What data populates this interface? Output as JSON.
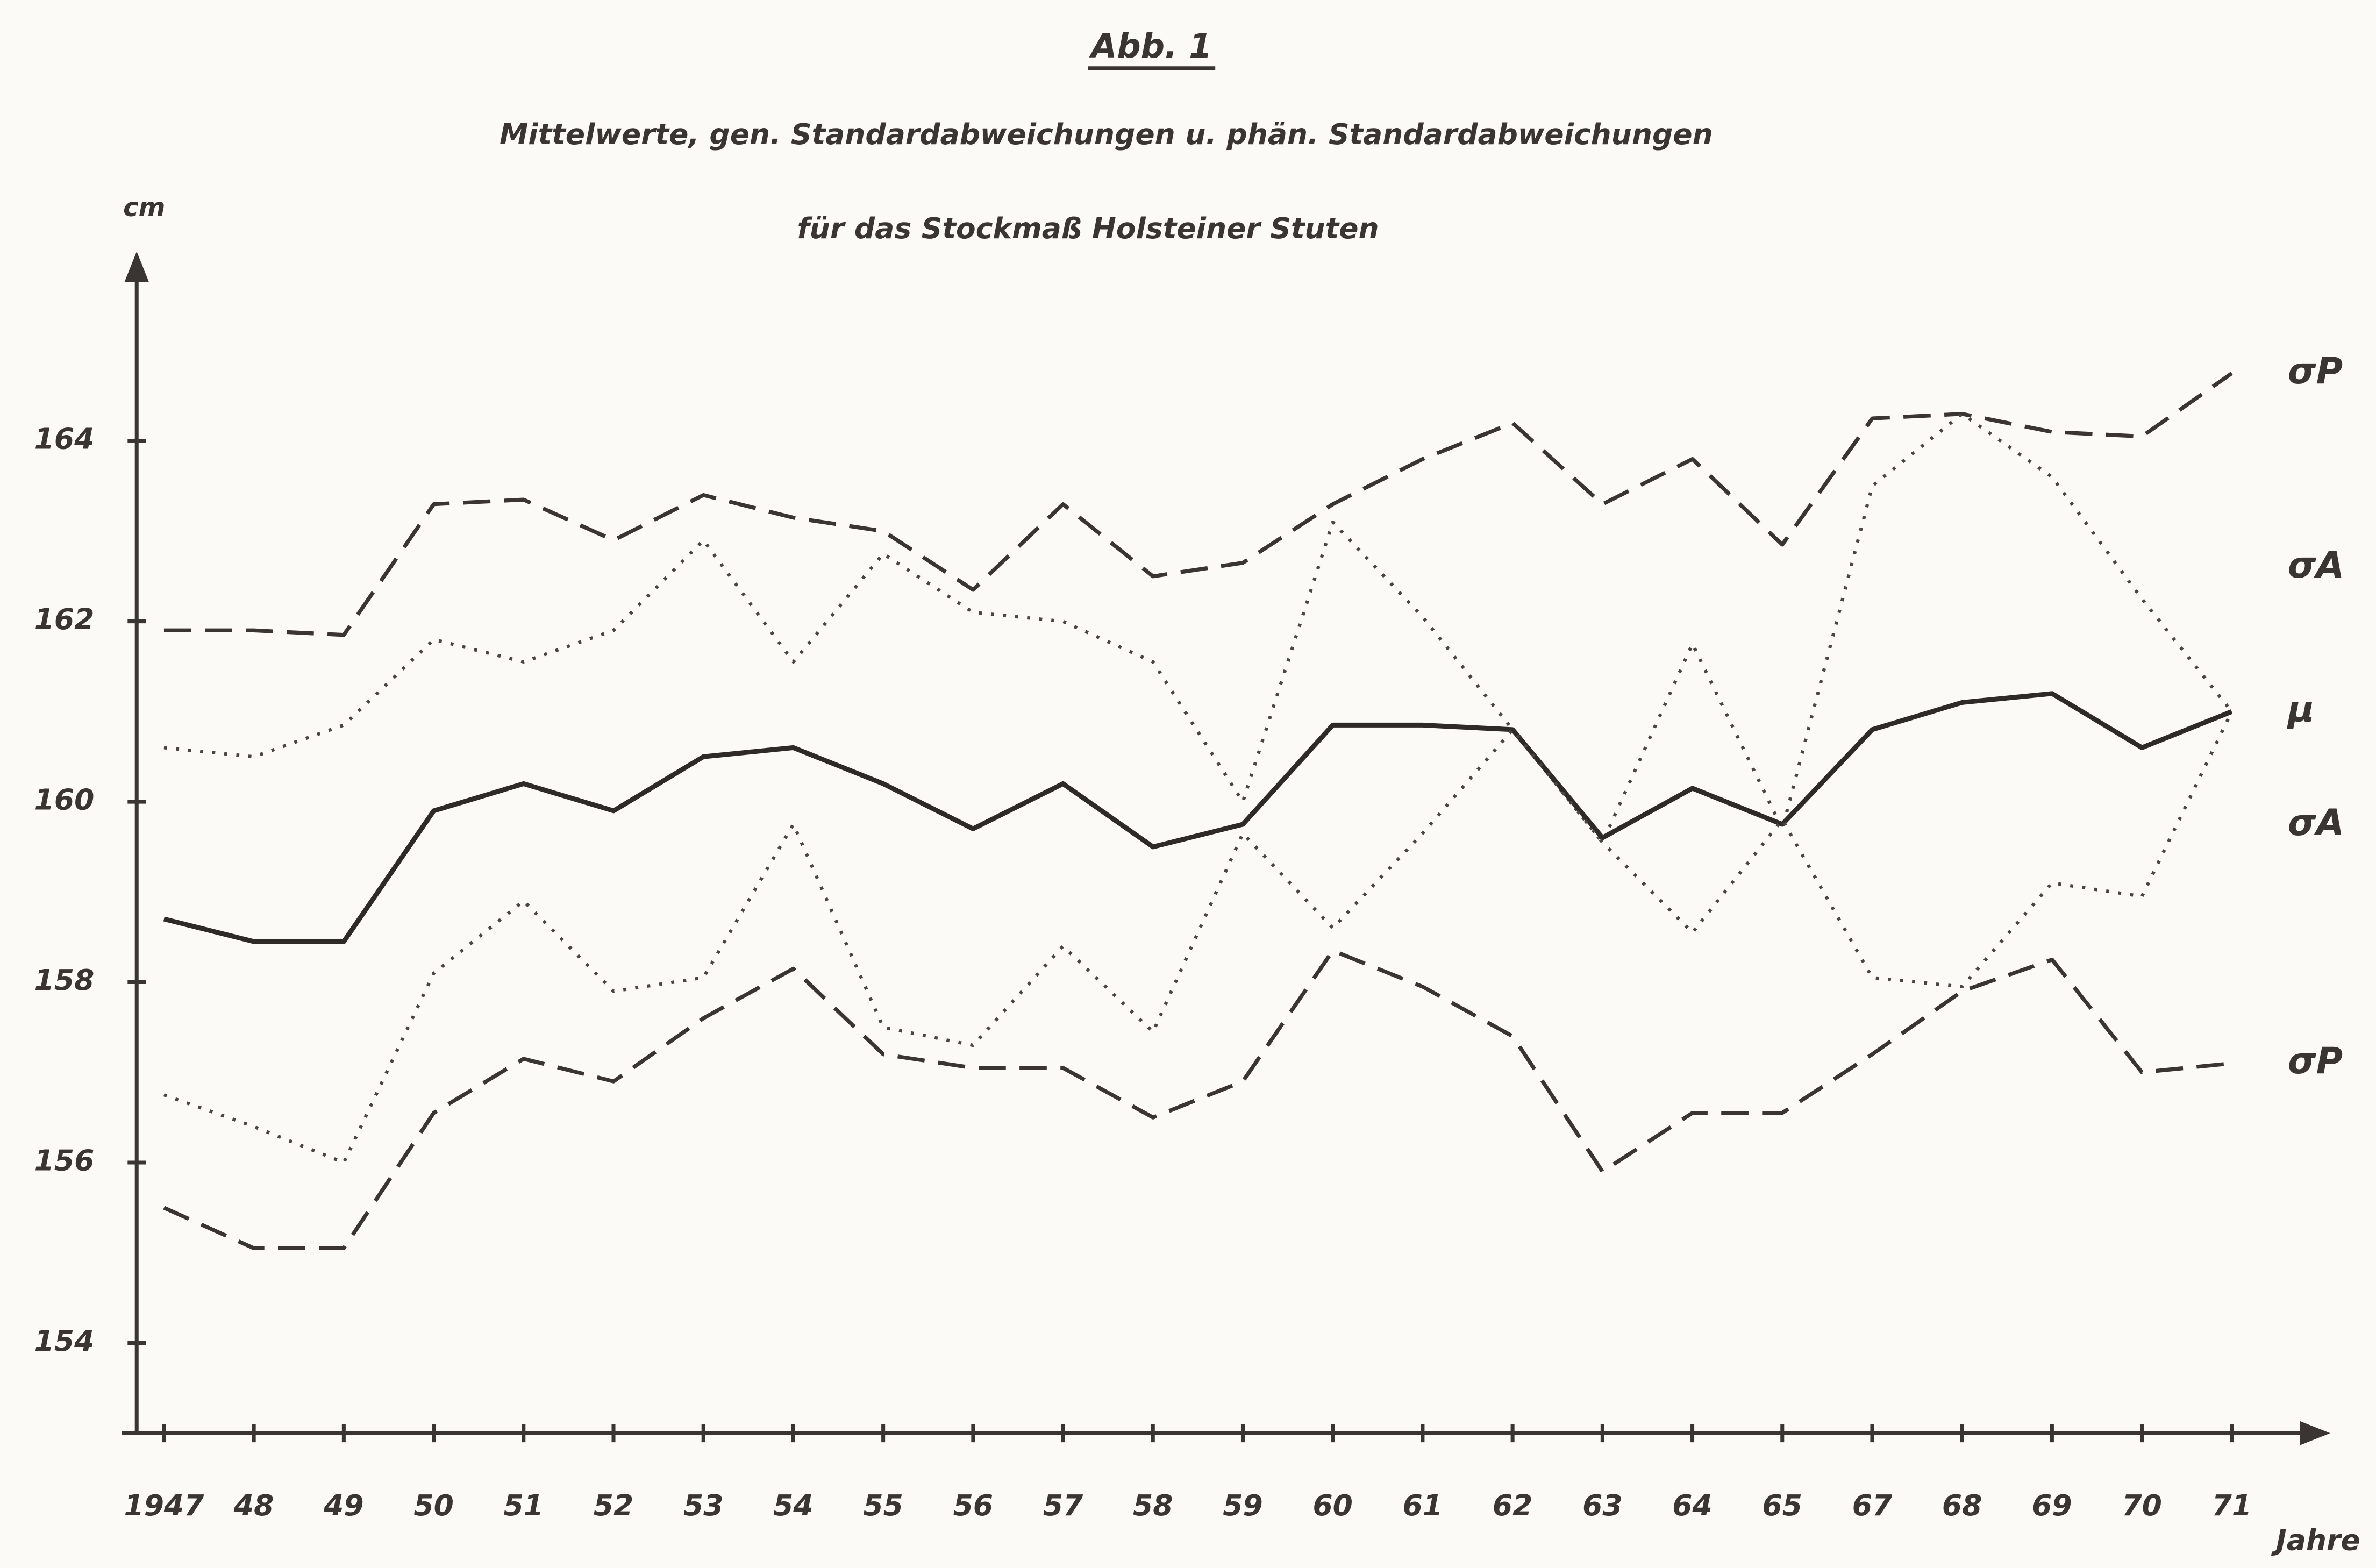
{
  "chart_data": {
    "type": "line",
    "title": "Abb. 1",
    "subtitle": [
      "Mittelwerte, gen. Standardabweichungen u. phän. Standardabweichungen",
      "für das Stockmaß Holsteiner Stuten"
    ],
    "y_label": "cm",
    "x_label": "Jahre",
    "categories": [
      "1947",
      "48",
      "49",
      "50",
      "51",
      "52",
      "53",
      "54",
      "55",
      "56",
      "57",
      "58",
      "59",
      "60",
      "61",
      "62",
      "63",
      "64",
      "65",
      "67",
      "68",
      "69",
      "70",
      "71"
    ],
    "ylim": [
      153,
      166
    ],
    "yticks": [
      154,
      156,
      158,
      160,
      162,
      164
    ],
    "series": [
      {
        "name": "σP",
        "color": "#3a3532",
        "dash": "dashed",
        "values": [
          161.9,
          161.9,
          161.85,
          163.3,
          163.35,
          162.9,
          163.4,
          163.15,
          163.0,
          162.35,
          163.3,
          162.5,
          162.65,
          163.3,
          163.8,
          164.2,
          163.3,
          163.8,
          162.85,
          164.25,
          164.3,
          164.1,
          164.05,
          164.75
        ]
      },
      {
        "name": "σA",
        "color": "#4a4542",
        "dash": "dotted",
        "values": [
          160.6,
          160.5,
          160.85,
          161.8,
          161.55,
          161.9,
          162.9,
          161.55,
          162.75,
          162.1,
          162.0,
          161.55,
          160.0,
          163.1,
          162.05,
          160.8,
          159.55,
          161.75,
          159.7,
          163.5,
          164.3,
          163.6,
          162.25,
          161.0
        ]
      },
      {
        "name": "μ",
        "color": "#2e2a28",
        "dash": "solid",
        "values": [
          158.7,
          158.45,
          158.45,
          159.9,
          160.2,
          159.9,
          160.5,
          160.6,
          160.2,
          159.7,
          160.2,
          159.5,
          159.75,
          160.85,
          160.85,
          160.8,
          159.6,
          160.15,
          159.75,
          160.8,
          161.1,
          161.2,
          160.6,
          161.0
        ]
      },
      {
        "name": "σA",
        "color": "#4a4542",
        "dash": "dotted",
        "values": [
          156.75,
          156.4,
          156.0,
          158.1,
          158.9,
          157.9,
          158.05,
          159.75,
          157.5,
          157.3,
          158.4,
          157.45,
          159.65,
          158.6,
          159.65,
          160.8,
          159.55,
          158.55,
          159.8,
          158.05,
          157.95,
          159.1,
          158.95,
          161.0
        ]
      },
      {
        "name": "σP",
        "color": "#3a3532",
        "dash": "dashed",
        "values": [
          155.5,
          155.05,
          155.05,
          156.55,
          157.15,
          156.9,
          157.6,
          158.15,
          157.2,
          157.05,
          157.05,
          156.5,
          156.9,
          158.35,
          157.95,
          157.4,
          155.9,
          156.55,
          156.55,
          157.2,
          157.9,
          158.25,
          157.0,
          157.1
        ]
      }
    ]
  }
}
